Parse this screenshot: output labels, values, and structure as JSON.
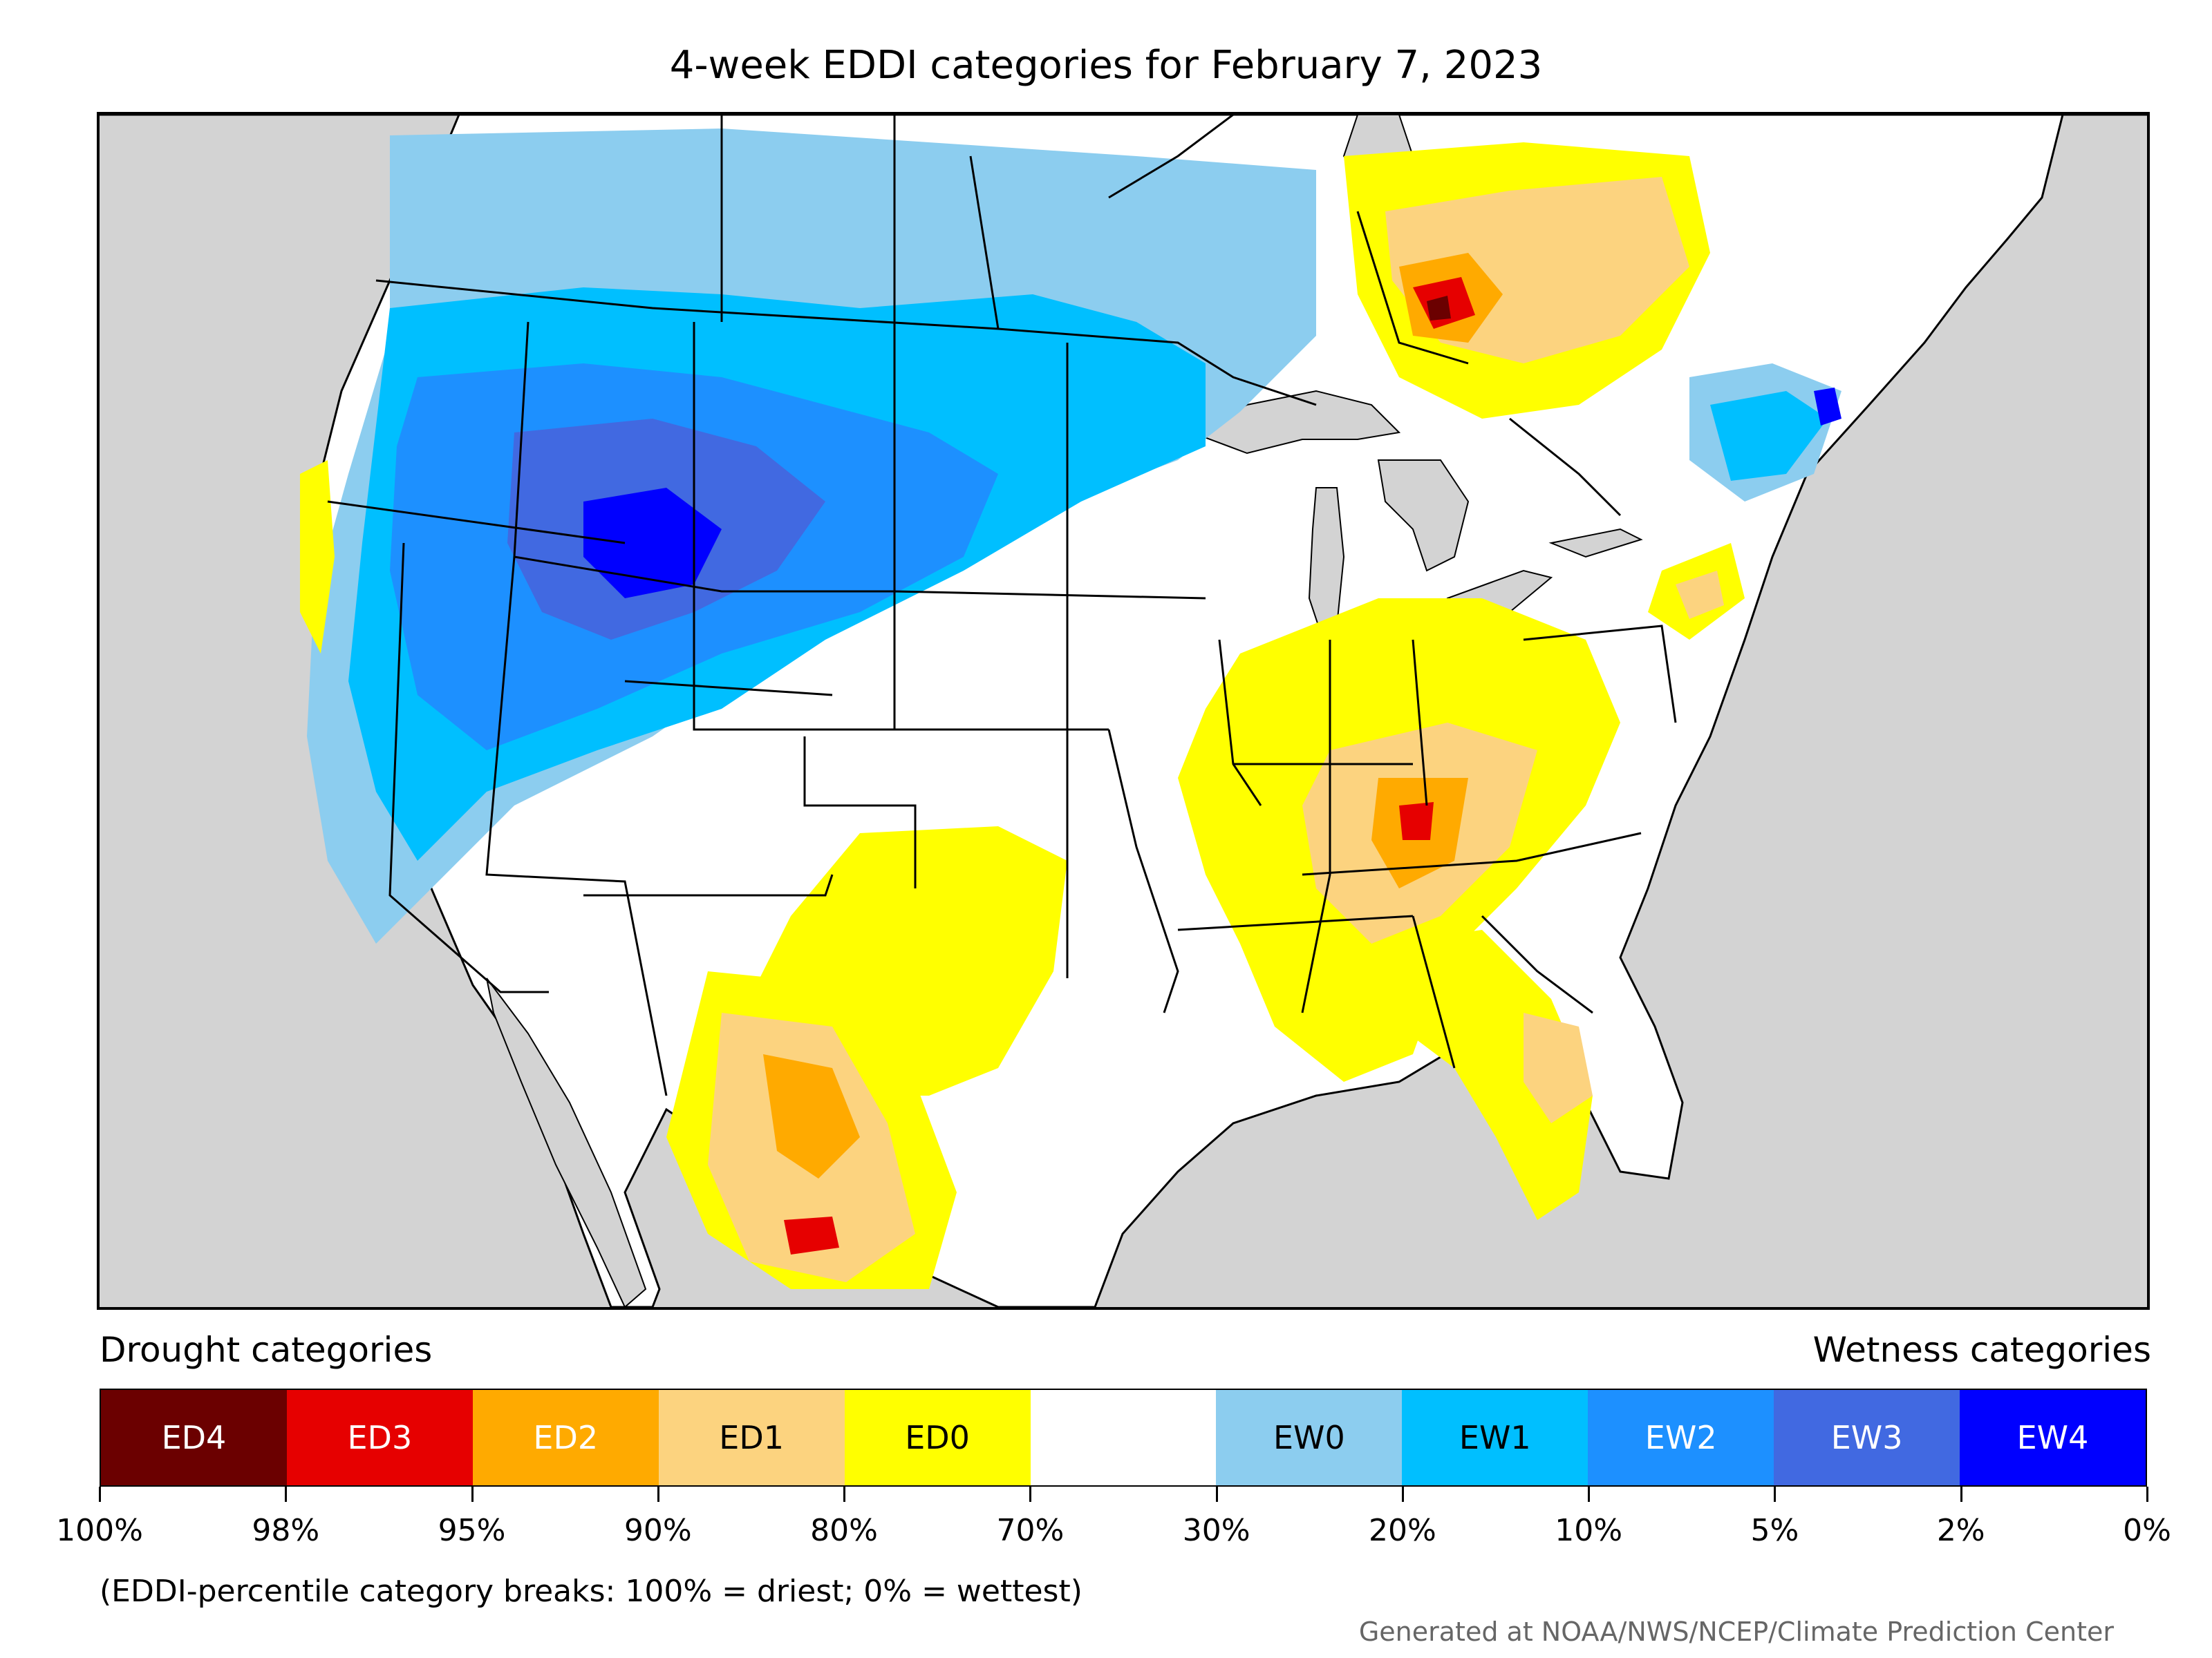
{
  "title": "4-week EDDI categories for February 7, 2023",
  "legend": {
    "drought_heading": "Drought categories",
    "wetness_heading": "Wetness categories",
    "categories": [
      {
        "label": "ED4",
        "color": "#6b0000",
        "text_color": "#ffffff"
      },
      {
        "label": "ED3",
        "color": "#e60000",
        "text_color": "#ffffff"
      },
      {
        "label": "ED2",
        "color": "#ffaa00",
        "text_color": "#ffffff"
      },
      {
        "label": "ED1",
        "color": "#fcd37f",
        "text_color": "#000000"
      },
      {
        "label": "ED0",
        "color": "#ffff00",
        "text_color": "#000000"
      },
      {
        "label": "",
        "color": "#ffffff",
        "text_color": "#000000"
      },
      {
        "label": "EW0",
        "color": "#8ccdef",
        "text_color": "#000000"
      },
      {
        "label": "EW1",
        "color": "#00bfff",
        "text_color": "#000000"
      },
      {
        "label": "EW2",
        "color": "#1d90ff",
        "text_color": "#ffffff"
      },
      {
        "label": "EW3",
        "color": "#4169e1",
        "text_color": "#ffffff"
      },
      {
        "label": "EW4",
        "color": "#0000ff",
        "text_color": "#ffffff"
      }
    ],
    "tick_labels": [
      "100%",
      "98%",
      "95%",
      "90%",
      "80%",
      "70%",
      "30%",
      "20%",
      "10%",
      "5%",
      "2%",
      "0%"
    ]
  },
  "note": "(EDDI-percentile category breaks: 100% = driest; 0% = wettest)",
  "credit": "Generated at NOAA/NWS/NCEP/Climate Prediction Center",
  "map": {
    "background_color": "#d3d3d3",
    "land_color": "#ffffff",
    "boundary_color": "#000000"
  }
}
